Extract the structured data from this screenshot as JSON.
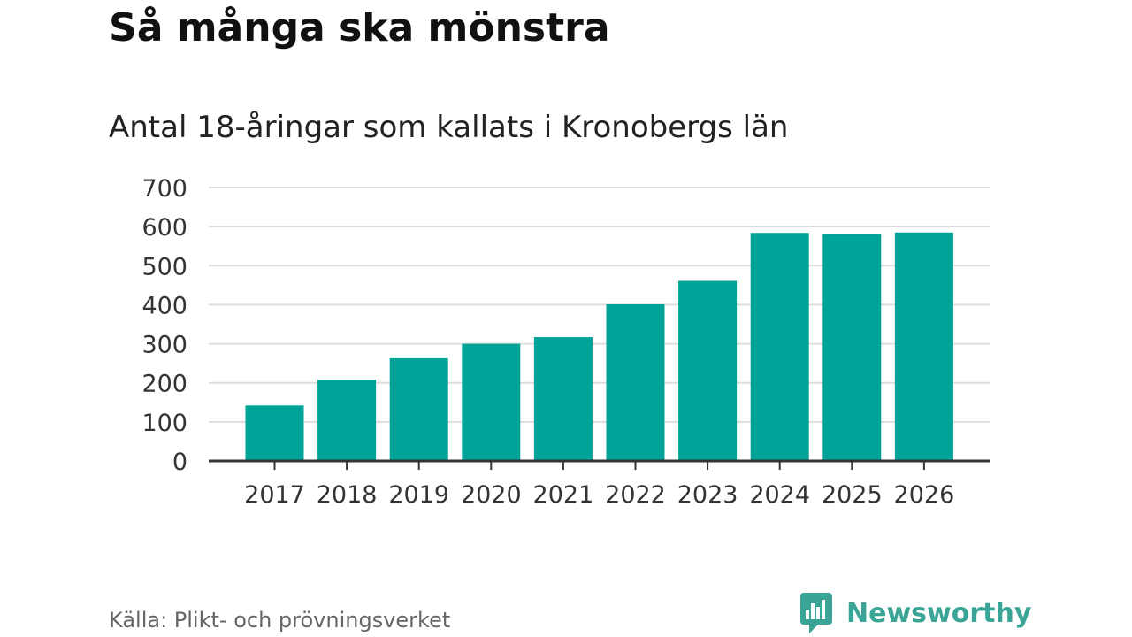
{
  "title": "Så många ska mönstra",
  "subtitle": "Antal 18-åringar som kallats i Kronobergs län",
  "source": "Källa: Plikt- och prövningsverket",
  "brand": {
    "name": "Newsworthy",
    "icon": "newsworthy-logo-icon",
    "color": "#3aa596"
  },
  "colors": {
    "bar": "#00a398",
    "grid": "#dddddd",
    "axis": "#333333"
  },
  "chart_data": {
    "type": "bar",
    "categories": [
      "2017",
      "2018",
      "2019",
      "2020",
      "2021",
      "2022",
      "2023",
      "2024",
      "2025",
      "2026"
    ],
    "values": [
      142,
      208,
      263,
      300,
      317,
      401,
      461,
      584,
      582,
      585
    ],
    "title": "Så många ska mönstra",
    "subtitle": "Antal 18-åringar som kallats i Kronobergs län",
    "xlabel": "",
    "ylabel": "",
    "ylim": [
      0,
      700
    ],
    "yticks": [
      0,
      100,
      200,
      300,
      400,
      500,
      600,
      700
    ],
    "grid": true,
    "legend": "none"
  }
}
